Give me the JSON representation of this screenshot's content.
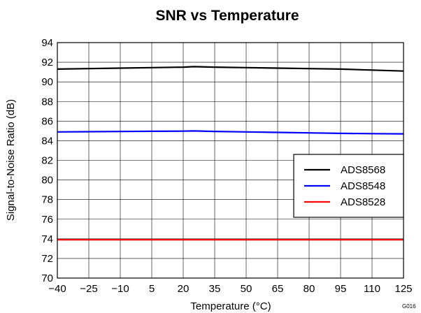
{
  "chart_data": {
    "type": "line",
    "title": "SNR vs Temperature",
    "xlabel": "Temperature (°C)",
    "ylabel": "Signal-to-Noise Ratio (dB)",
    "x_ticks": [
      "−40",
      "−25",
      "−10",
      "5",
      "20",
      "35",
      "50",
      "65",
      "80",
      "95",
      "110",
      "125"
    ],
    "y_ticks": [
      "70",
      "72",
      "74",
      "76",
      "78",
      "80",
      "82",
      "84",
      "86",
      "88",
      "90",
      "92",
      "94"
    ],
    "xlim": [
      -40,
      125
    ],
    "ylim": [
      70,
      94
    ],
    "grid": true,
    "legend_position": "right",
    "figure_code": "G016",
    "series": [
      {
        "name": "ADS8568",
        "color": "#000000",
        "x": [
          -40,
          -25,
          -10,
          5,
          20,
          25,
          35,
          50,
          65,
          80,
          95,
          110,
          125
        ],
        "y": [
          91.3,
          91.35,
          91.4,
          91.45,
          91.5,
          91.55,
          91.5,
          91.45,
          91.4,
          91.35,
          91.3,
          91.2,
          91.1
        ]
      },
      {
        "name": "ADS8548",
        "color": "#0000ff",
        "x": [
          -40,
          -25,
          -10,
          5,
          20,
          25,
          35,
          50,
          65,
          80,
          95,
          110,
          125
        ],
        "y": [
          84.9,
          84.92,
          84.94,
          84.96,
          84.98,
          85.0,
          84.95,
          84.9,
          84.85,
          84.8,
          84.75,
          84.72,
          84.7
        ]
      },
      {
        "name": "ADS8528",
        "color": "#ff0000",
        "x": [
          -40,
          -25,
          -10,
          5,
          20,
          35,
          50,
          65,
          80,
          95,
          110,
          125
        ],
        "y": [
          73.9,
          73.9,
          73.9,
          73.9,
          73.9,
          73.9,
          73.9,
          73.9,
          73.9,
          73.9,
          73.9,
          73.9
        ]
      }
    ]
  }
}
